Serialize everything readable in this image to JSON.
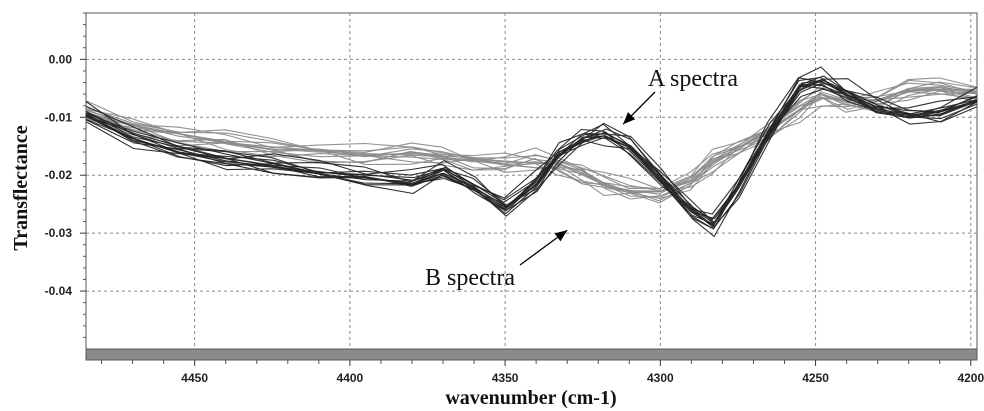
{
  "chart_data": {
    "type": "line",
    "title": "",
    "xlabel": "wavenumber (cm-1)",
    "ylabel": "Transflectance",
    "xlim": [
      4485,
      4198
    ],
    "ylim": [
      -0.05,
      0.008
    ],
    "x_reversed": true,
    "grid": true,
    "xticks": [
      4450,
      4400,
      4350,
      4300,
      4250,
      4200
    ],
    "yticks": [
      0.0,
      -0.01,
      -0.02,
      -0.03,
      -0.04
    ],
    "ytick_labels": [
      "0.00",
      "-0.01",
      "-0.02",
      "-0.03",
      "-0.04"
    ],
    "annotations": [
      {
        "text": "A spectra",
        "points_to": {
          "x": 4312,
          "y": -0.0112
        }
      },
      {
        "text": "B spectra",
        "points_to": {
          "x": 4330,
          "y": -0.0295
        }
      }
    ],
    "x": [
      4485,
      4470,
      4455,
      4440,
      4425,
      4410,
      4395,
      4380,
      4370,
      4360,
      4350,
      4340,
      4333,
      4325,
      4318,
      4310,
      4300,
      4290,
      4283,
      4275,
      4265,
      4255,
      4248,
      4240,
      4230,
      4220,
      4210,
      4198
    ],
    "series": [
      {
        "group": "A",
        "color": "#262626",
        "count": 14,
        "values": [
          -0.0095,
          -0.0135,
          -0.0158,
          -0.0172,
          -0.0182,
          -0.0195,
          -0.0205,
          -0.0212,
          -0.0193,
          -0.022,
          -0.0255,
          -0.0215,
          -0.0165,
          -0.0138,
          -0.0128,
          -0.0148,
          -0.0205,
          -0.0262,
          -0.0285,
          -0.022,
          -0.0125,
          -0.0045,
          -0.0037,
          -0.0058,
          -0.0083,
          -0.0097,
          -0.0093,
          -0.0072
        ]
      },
      {
        "group": "B",
        "color": "#8c8c8c",
        "count": 14,
        "values": [
          -0.009,
          -0.0112,
          -0.0128,
          -0.0142,
          -0.0152,
          -0.0158,
          -0.0165,
          -0.0162,
          -0.0165,
          -0.0172,
          -0.0178,
          -0.0175,
          -0.0178,
          -0.0195,
          -0.0215,
          -0.0225,
          -0.0228,
          -0.0208,
          -0.0175,
          -0.0152,
          -0.012,
          -0.0085,
          -0.0062,
          -0.0072,
          -0.0068,
          -0.0052,
          -0.0048,
          -0.0055
        ]
      }
    ]
  }
}
